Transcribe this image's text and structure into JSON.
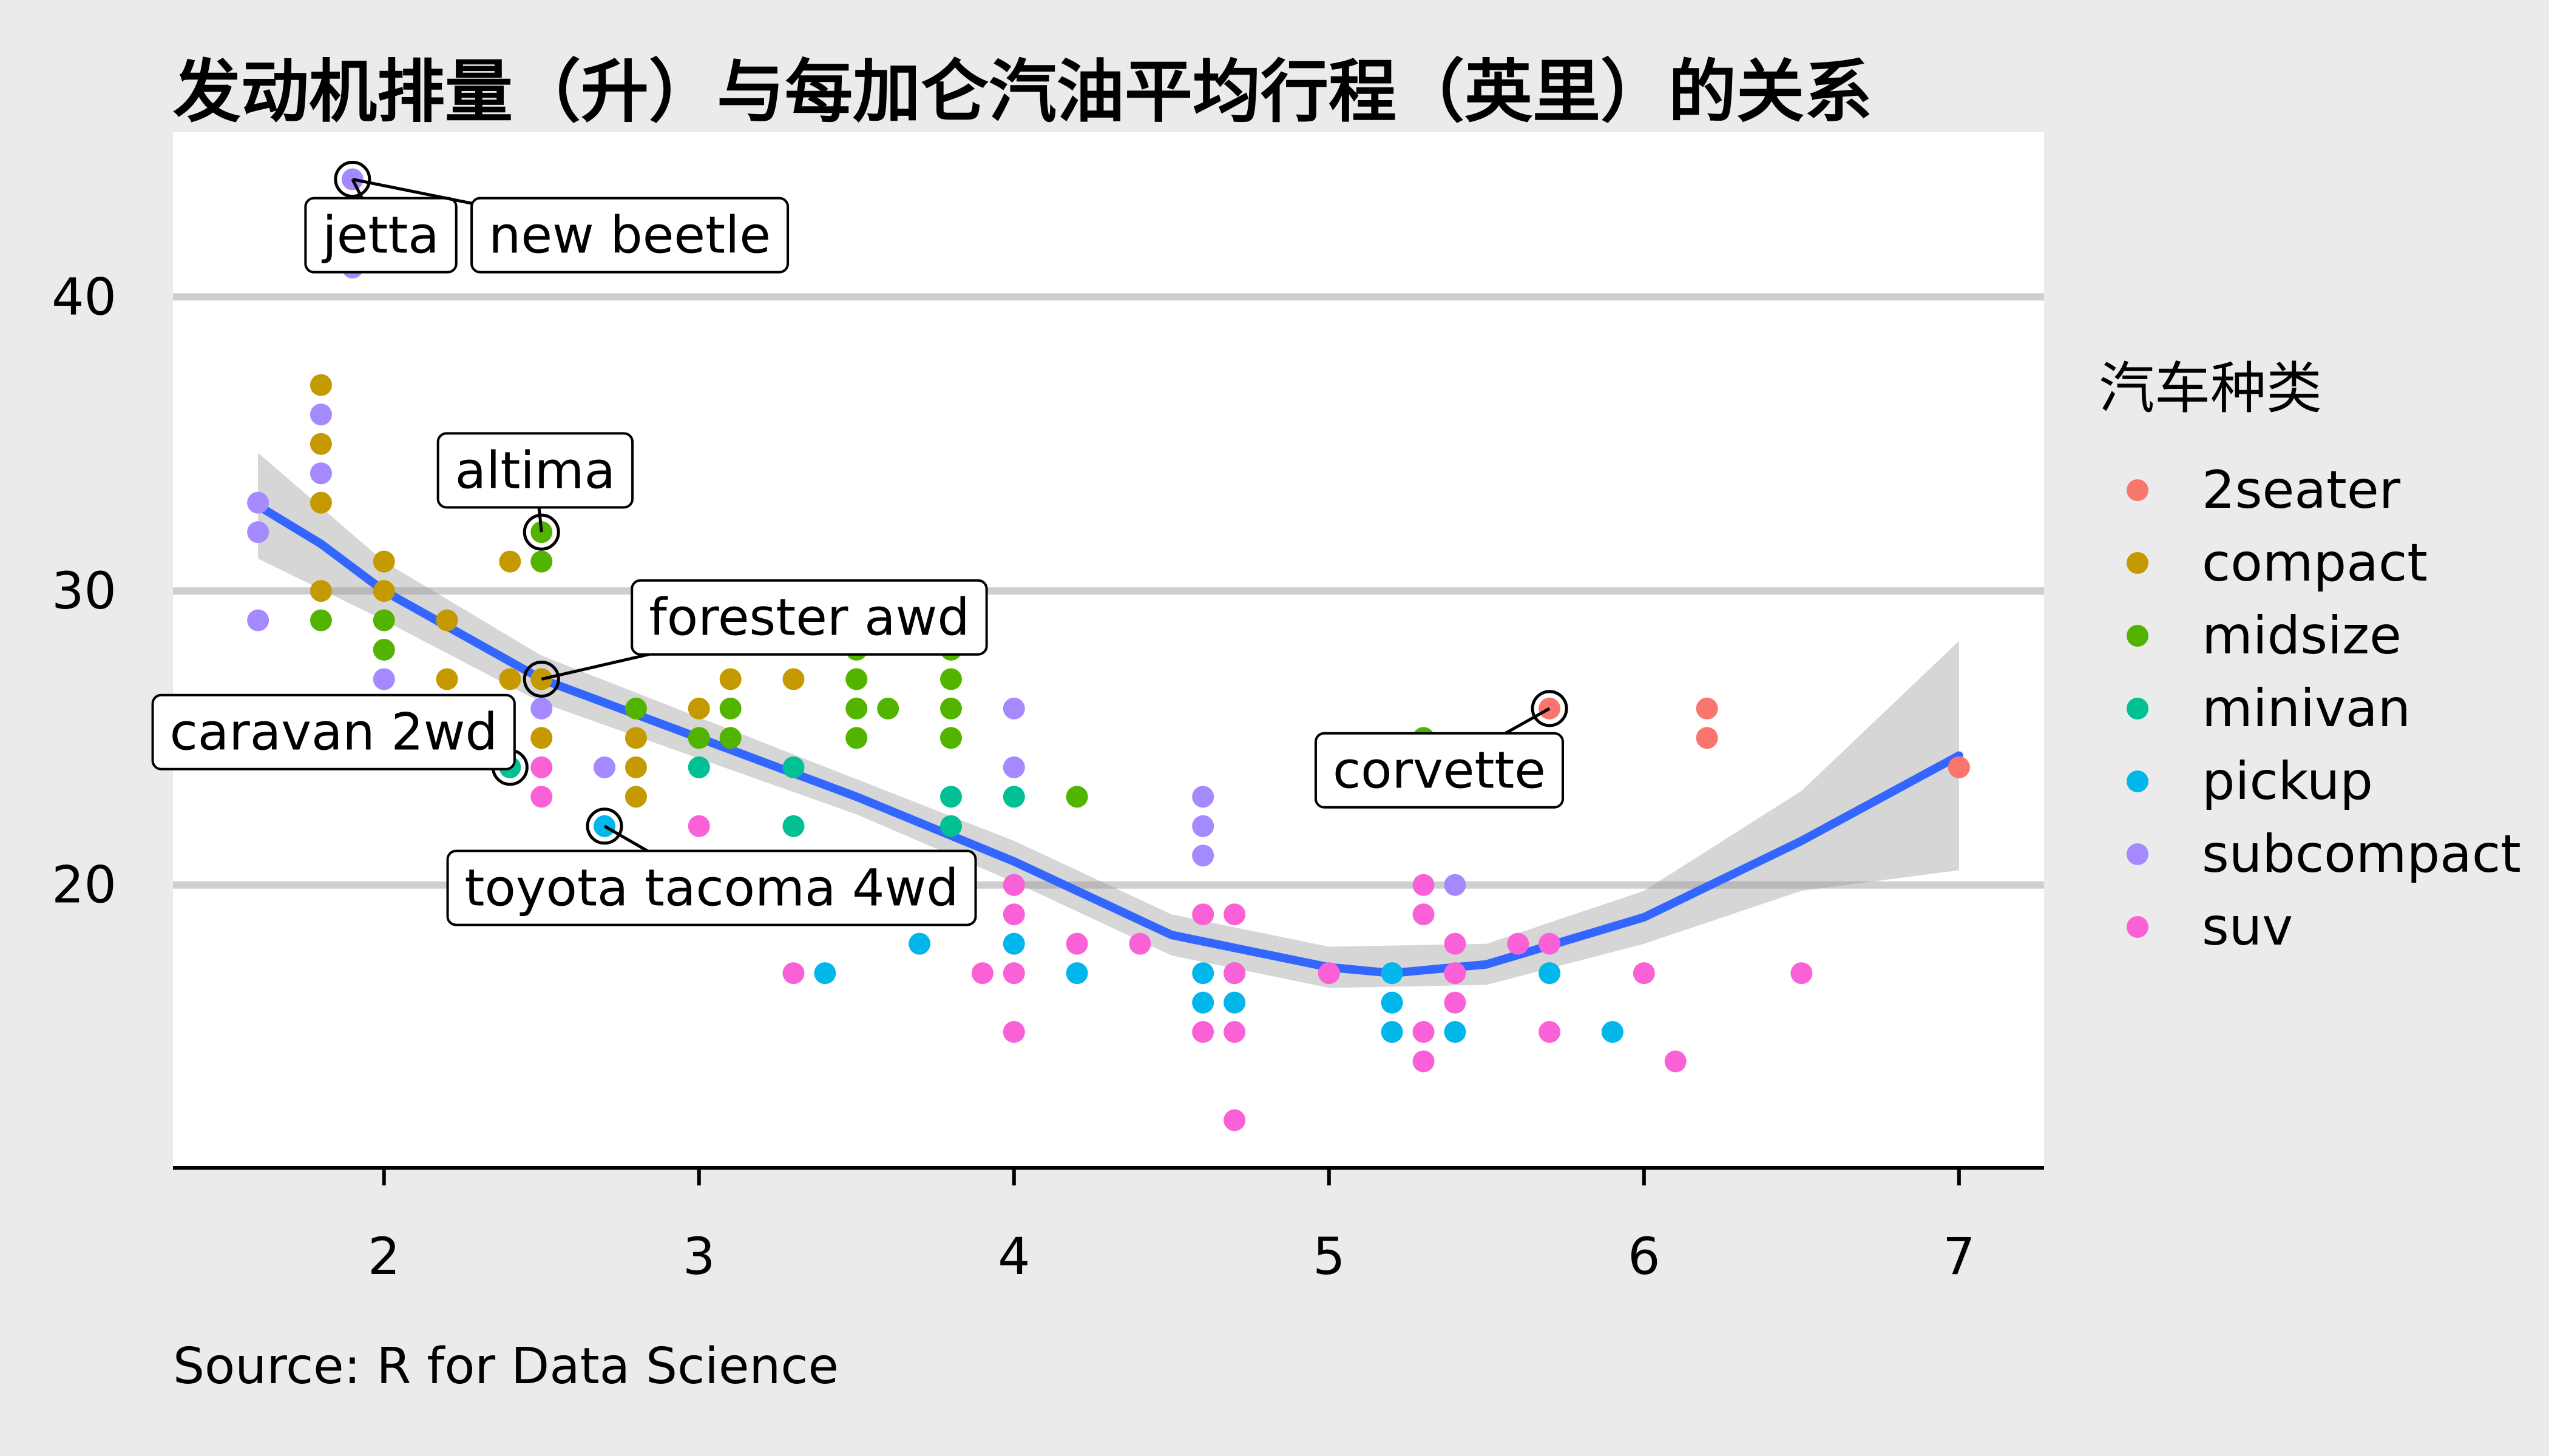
{
  "chart_data": {
    "type": "scatter",
    "title": "发动机排量（升）与每加仑汽油平均行程（英里）的关系",
    "xlabel": "",
    "ylabel": "",
    "caption": "Source: R for Data Science",
    "xlim": [
      1.33,
      7.27
    ],
    "ylim": [
      10.4,
      45.6
    ],
    "x_ticks": [
      2,
      3,
      4,
      5,
      6,
      7
    ],
    "y_ticks": [
      20,
      30,
      40
    ],
    "grid": "horizontal-major",
    "legend": {
      "title": "汽车种类",
      "position": "right",
      "entries": [
        {
          "name": "2seater",
          "color": "#F8766D"
        },
        {
          "name": "compact",
          "color": "#C49A00"
        },
        {
          "name": "midsize",
          "color": "#53B400"
        },
        {
          "name": "minivan",
          "color": "#00C094"
        },
        {
          "name": "pickup",
          "color": "#00B6EB"
        },
        {
          "name": "subcompact",
          "color": "#A58AFF"
        },
        {
          "name": "suv",
          "color": "#FB61D7"
        }
      ]
    },
    "series": [
      {
        "name": "2seater",
        "points": [
          [
            5.7,
            26
          ],
          [
            5.7,
            23
          ],
          [
            6.2,
            26
          ],
          [
            6.2,
            25
          ],
          [
            7.0,
            24
          ]
        ]
      },
      {
        "name": "compact",
        "points": [
          [
            1.8,
            37
          ],
          [
            1.8,
            35
          ],
          [
            1.8,
            33
          ],
          [
            1.8,
            30
          ],
          [
            2.0,
            31
          ],
          [
            2.0,
            30
          ],
          [
            2.2,
            29
          ],
          [
            2.2,
            27
          ],
          [
            2.4,
            31
          ],
          [
            2.4,
            27
          ],
          [
            2.5,
            27
          ],
          [
            2.5,
            25
          ],
          [
            2.8,
            25
          ],
          [
            2.8,
            24
          ],
          [
            2.8,
            23
          ],
          [
            3.0,
            26
          ],
          [
            3.1,
            27
          ],
          [
            3.3,
            27
          ]
        ]
      },
      {
        "name": "midsize",
        "points": [
          [
            1.8,
            29
          ],
          [
            2.0,
            29
          ],
          [
            2.0,
            28
          ],
          [
            2.5,
            32
          ],
          [
            2.5,
            31
          ],
          [
            2.8,
            26
          ],
          [
            3.0,
            25
          ],
          [
            3.1,
            26
          ],
          [
            3.1,
            25
          ],
          [
            3.5,
            29
          ],
          [
            3.5,
            28
          ],
          [
            3.5,
            27
          ],
          [
            3.5,
            26
          ],
          [
            3.5,
            25
          ],
          [
            3.6,
            26
          ],
          [
            3.8,
            28
          ],
          [
            3.8,
            27
          ],
          [
            3.8,
            26
          ],
          [
            3.8,
            25
          ],
          [
            4.2,
            23
          ],
          [
            5.3,
            25
          ]
        ]
      },
      {
        "name": "minivan",
        "points": [
          [
            2.4,
            24
          ],
          [
            3.0,
            24
          ],
          [
            3.3,
            24
          ],
          [
            3.3,
            22
          ],
          [
            3.8,
            23
          ],
          [
            3.8,
            22
          ],
          [
            4.0,
            23
          ]
        ]
      },
      {
        "name": "pickup",
        "points": [
          [
            2.7,
            22
          ],
          [
            3.4,
            17
          ],
          [
            3.7,
            18
          ],
          [
            4.0,
            20
          ],
          [
            4.0,
            18
          ],
          [
            4.2,
            17
          ],
          [
            4.6,
            17
          ],
          [
            4.6,
            16
          ],
          [
            4.7,
            17
          ],
          [
            4.7,
            16
          ],
          [
            5.2,
            17
          ],
          [
            5.2,
            16
          ],
          [
            5.2,
            15
          ],
          [
            5.4,
            15
          ],
          [
            5.7,
            17
          ],
          [
            5.9,
            15
          ]
        ]
      },
      {
        "name": "subcompact",
        "points": [
          [
            1.6,
            33
          ],
          [
            1.6,
            32
          ],
          [
            1.6,
            29
          ],
          [
            1.8,
            36
          ],
          [
            1.8,
            34
          ],
          [
            1.9,
            44
          ],
          [
            1.9,
            41
          ],
          [
            2.0,
            27
          ],
          [
            2.5,
            26
          ],
          [
            2.7,
            24
          ],
          [
            4.0,
            26
          ],
          [
            4.0,
            24
          ],
          [
            4.6,
            23
          ],
          [
            4.6,
            22
          ],
          [
            4.6,
            21
          ],
          [
            5.4,
            20
          ]
        ]
      },
      {
        "name": "suv",
        "points": [
          [
            2.5,
            24
          ],
          [
            2.5,
            23
          ],
          [
            3.0,
            22
          ],
          [
            3.3,
            17
          ],
          [
            3.9,
            17
          ],
          [
            4.0,
            20
          ],
          [
            4.0,
            19
          ],
          [
            4.0,
            17
          ],
          [
            4.0,
            15
          ],
          [
            4.2,
            18
          ],
          [
            4.4,
            18
          ],
          [
            4.6,
            19
          ],
          [
            4.6,
            15
          ],
          [
            4.7,
            19
          ],
          [
            4.7,
            17
          ],
          [
            4.7,
            15
          ],
          [
            4.7,
            12
          ],
          [
            5.0,
            17
          ],
          [
            5.3,
            20
          ],
          [
            5.3,
            19
          ],
          [
            5.3,
            15
          ],
          [
            5.3,
            14
          ],
          [
            5.4,
            18
          ],
          [
            5.4,
            17
          ],
          [
            5.4,
            16
          ],
          [
            5.6,
            18
          ],
          [
            5.7,
            18
          ],
          [
            5.7,
            15
          ],
          [
            6.0,
            17
          ],
          [
            6.1,
            14
          ],
          [
            6.5,
            17
          ]
        ]
      }
    ],
    "smooth": {
      "method": "loess",
      "color": "#3366FF",
      "points": [
        [
          1.6,
          32.9
        ],
        [
          1.8,
          31.6
        ],
        [
          2.0,
          30.0
        ],
        [
          2.5,
          27.0
        ],
        [
          3.0,
          25.0
        ],
        [
          3.5,
          23.0
        ],
        [
          4.0,
          20.8
        ],
        [
          4.5,
          18.3
        ],
        [
          5.0,
          17.2
        ],
        [
          5.2,
          17.0
        ],
        [
          5.5,
          17.3
        ],
        [
          6.0,
          18.9
        ],
        [
          6.5,
          21.5
        ],
        [
          7.0,
          24.4
        ]
      ],
      "band_upper": [
        [
          1.6,
          34.7
        ],
        [
          2.0,
          31.0
        ],
        [
          2.5,
          27.8
        ],
        [
          3.0,
          25.7
        ],
        [
          3.5,
          23.6
        ],
        [
          4.0,
          21.5
        ],
        [
          4.5,
          19.0
        ],
        [
          5.0,
          17.9
        ],
        [
          5.5,
          18.0
        ],
        [
          6.0,
          19.8
        ],
        [
          6.5,
          23.2
        ],
        [
          7.0,
          28.3
        ]
      ],
      "band_lower": [
        [
          1.6,
          31.1
        ],
        [
          2.0,
          29.0
        ],
        [
          2.5,
          26.2
        ],
        [
          3.0,
          24.3
        ],
        [
          3.5,
          22.4
        ],
        [
          4.0,
          20.1
        ],
        [
          4.5,
          17.6
        ],
        [
          5.0,
          16.5
        ],
        [
          5.5,
          16.6
        ],
        [
          6.0,
          18.0
        ],
        [
          6.5,
          19.8
        ],
        [
          7.0,
          20.5
        ]
      ]
    },
    "highlighted": [
      [
        1.9,
        44
      ],
      [
        2.5,
        32
      ],
      [
        2.5,
        27
      ],
      [
        2.4,
        24
      ],
      [
        2.7,
        22
      ],
      [
        5.7,
        26
      ]
    ],
    "annotations": [
      {
        "text": "jetta",
        "point": [
          1.9,
          44
        ],
        "anchor": [
          1.99,
          42.1
        ]
      },
      {
        "text": "new beetle",
        "point": [
          1.9,
          44
        ],
        "anchor": [
          2.78,
          42.1
        ]
      },
      {
        "text": "altima",
        "point": [
          2.5,
          32
        ],
        "anchor": [
          2.48,
          34.1
        ]
      },
      {
        "text": "forester awd",
        "point": [
          2.5,
          27
        ],
        "anchor": [
          3.35,
          29.1
        ]
      },
      {
        "text": "caravan 2wd",
        "point": [
          2.4,
          24
        ],
        "anchor": [
          1.84,
          25.2
        ]
      },
      {
        "text": "toyota tacoma 4wd",
        "point": [
          2.7,
          22
        ],
        "anchor": [
          3.04,
          19.9
        ]
      },
      {
        "text": "corvette",
        "point": [
          5.7,
          26
        ],
        "anchor": [
          5.35,
          23.9
        ]
      }
    ]
  }
}
